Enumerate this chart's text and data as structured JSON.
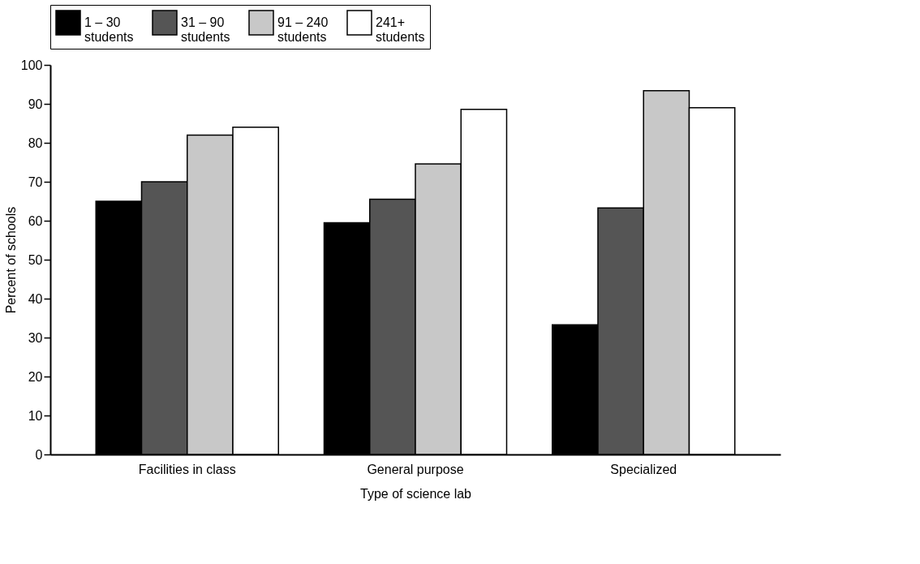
{
  "chart_data": {
    "type": "bar",
    "xlabel": "Type of science lab",
    "ylabel": "Percent of schools",
    "categories": [
      "Facilities in class",
      "General purpose",
      "Specialized"
    ],
    "series": [
      {
        "name": "1 – 30\nstudents",
        "color": "#000000",
        "values": [
          65,
          59.5,
          33.3
        ]
      },
      {
        "name": "31 – 90\nstudents",
        "color": "#555555",
        "values": [
          70,
          65.5,
          63.3
        ]
      },
      {
        "name": "91 – 240\nstudents",
        "color": "#c8c8c8",
        "values": [
          82,
          74.6,
          93.4
        ]
      },
      {
        "name": "241+\nstudents",
        "color": "#ffffff",
        "values": [
          84,
          88.6,
          89
        ]
      }
    ],
    "ylim": [
      0,
      100
    ],
    "yticks": [
      0,
      10,
      20,
      30,
      40,
      50,
      60,
      70,
      80,
      90,
      100
    ],
    "grid": false,
    "legend": "top"
  }
}
